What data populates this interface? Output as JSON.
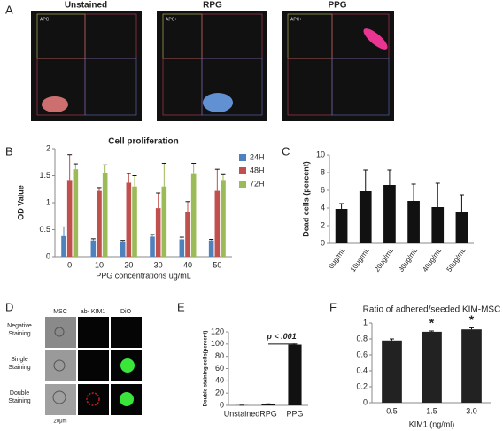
{
  "panel_labels": [
    "A",
    "B",
    "C",
    "D",
    "E",
    "F"
  ],
  "panel_a": {
    "titles": [
      "Unstained",
      "RPG",
      "PPG"
    ],
    "gate_label": "APC+"
  },
  "panel_d": {
    "columns": [
      "MSC",
      "ab- KIM1",
      "DiO"
    ],
    "rows": [
      [
        "Negative",
        "Staining"
      ],
      [
        "Single",
        "Staining"
      ],
      [
        "Double",
        "Staining"
      ]
    ],
    "scale": "20μm"
  },
  "chart_data": [
    {
      "type": "bar",
      "title": "Cell proliferation",
      "xlabel": "PPG concentrations  ug/mL",
      "ylabel": "OD Value",
      "categories": [
        "0",
        "10",
        "20",
        "30",
        "40",
        "50"
      ],
      "series": [
        {
          "name": "24H",
          "color": "#4f81bd",
          "values": [
            0.38,
            0.3,
            0.28,
            0.37,
            0.32,
            0.3
          ],
          "errors": [
            0.17,
            0.03,
            0.02,
            0.04,
            0.04,
            0.02
          ]
        },
        {
          "name": "48H",
          "color": "#c0504d",
          "values": [
            1.42,
            1.22,
            1.37,
            0.9,
            0.82,
            1.22
          ],
          "errors": [
            0.47,
            0.06,
            0.17,
            0.28,
            0.2,
            0.4
          ]
        },
        {
          "name": "72H",
          "color": "#9bbb59",
          "values": [
            1.62,
            1.55,
            1.3,
            1.3,
            1.53,
            1.42
          ],
          "errors": [
            0.1,
            0.15,
            0.2,
            0.43,
            0.2,
            0.1
          ]
        }
      ],
      "ylim": [
        0,
        2
      ],
      "yticks": [
        0,
        0.5,
        1,
        1.5,
        2
      ],
      "legend": "right"
    },
    {
      "type": "bar",
      "ylabel": "Dead  cells (percent)",
      "categories": [
        "0ug/mL",
        "10ug/mL",
        "20ug/mL",
        "30ug/mL",
        "40ug/mL",
        "50ug/mL"
      ],
      "values": [
        3.9,
        5.9,
        6.6,
        4.8,
        4.1,
        3.6
      ],
      "errors": [
        0.6,
        2.4,
        1.7,
        1.9,
        2.7,
        1.9
      ],
      "color": "#111111",
      "ylim": [
        0,
        10
      ],
      "yticks": [
        0,
        2,
        4,
        6,
        8,
        10
      ]
    },
    {
      "type": "bar",
      "ylabel": "Double staining cells(percent)",
      "annotation": "p < .001",
      "categories": [
        "Unstained",
        "RPG",
        "PPG"
      ],
      "values": [
        0.2,
        2,
        99
      ],
      "errors": [
        0.1,
        0.5,
        1
      ],
      "color": "#111111",
      "ylim": [
        0,
        120
      ],
      "yticks": [
        0,
        20,
        40,
        60,
        80,
        100,
        120
      ]
    },
    {
      "type": "bar",
      "title": "Ratio of adhered/seeded KIM-MSC",
      "xlabel": "KIM1 (ng/ml)",
      "categories": [
        "0.5",
        "1.5",
        "3.0"
      ],
      "values": [
        0.78,
        0.89,
        0.92
      ],
      "errors": [
        0.02,
        0.01,
        0.02
      ],
      "color": "#222222",
      "annotations": [
        null,
        "*",
        "*"
      ],
      "ylim": [
        0,
        1
      ],
      "yticks": [
        0,
        0.2,
        0.4,
        0.6,
        0.8,
        1
      ]
    }
  ]
}
